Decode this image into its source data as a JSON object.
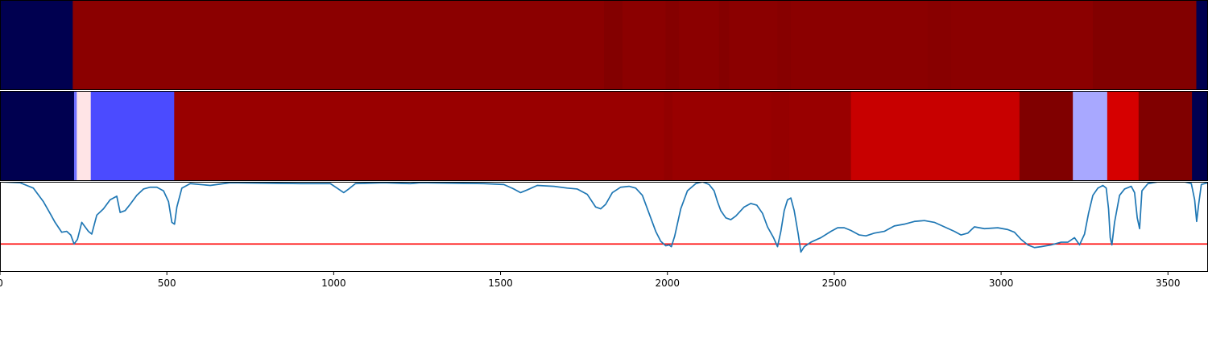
{
  "chart_data": [
    {
      "type": "heatmap",
      "title": "",
      "xlabel": "",
      "ylabel": "",
      "xlim": [
        0,
        3620
      ],
      "segments": [
        {
          "start": 0,
          "end": 218,
          "color": "#000050"
        },
        {
          "start": 218,
          "end": 1810,
          "color": "#8b0000"
        },
        {
          "start": 1810,
          "end": 1865,
          "color": "#830000"
        },
        {
          "start": 1865,
          "end": 1995,
          "color": "#8b0000"
        },
        {
          "start": 1995,
          "end": 2035,
          "color": "#850000"
        },
        {
          "start": 2035,
          "end": 2155,
          "color": "#8b0000"
        },
        {
          "start": 2155,
          "end": 2185,
          "color": "#850000"
        },
        {
          "start": 2185,
          "end": 2330,
          "color": "#8b0000"
        },
        {
          "start": 2330,
          "end": 2370,
          "color": "#870000"
        },
        {
          "start": 2370,
          "end": 2780,
          "color": "#8b0000"
        },
        {
          "start": 2780,
          "end": 2850,
          "color": "#880000"
        },
        {
          "start": 2850,
          "end": 3275,
          "color": "#8b0000"
        },
        {
          "start": 3275,
          "end": 3585,
          "color": "#820000"
        },
        {
          "start": 3585,
          "end": 3620,
          "color": "#000050"
        }
      ]
    },
    {
      "type": "heatmap",
      "title": "",
      "xlabel": "",
      "ylabel": "",
      "xlim": [
        0,
        3620
      ],
      "segments": [
        {
          "start": 0,
          "end": 222,
          "color": "#000050"
        },
        {
          "start": 222,
          "end": 230,
          "color": "#7070ff"
        },
        {
          "start": 230,
          "end": 272,
          "color": "#ffe4e6"
        },
        {
          "start": 272,
          "end": 522,
          "color": "#4b4bff"
        },
        {
          "start": 522,
          "end": 1990,
          "color": "#990000"
        },
        {
          "start": 1990,
          "end": 2015,
          "color": "#930000"
        },
        {
          "start": 2015,
          "end": 2310,
          "color": "#990000"
        },
        {
          "start": 2310,
          "end": 2365,
          "color": "#950000"
        },
        {
          "start": 2365,
          "end": 2550,
          "color": "#990000"
        },
        {
          "start": 2550,
          "end": 3055,
          "color": "#c80000"
        },
        {
          "start": 3055,
          "end": 3215,
          "color": "#800000"
        },
        {
          "start": 3215,
          "end": 3318,
          "color": "#a8a8ff"
        },
        {
          "start": 3318,
          "end": 3412,
          "color": "#d60000"
        },
        {
          "start": 3412,
          "end": 3572,
          "color": "#800000"
        },
        {
          "start": 3572,
          "end": 3620,
          "color": "#000050"
        }
      ]
    },
    {
      "type": "line",
      "title": "",
      "xlabel": "",
      "ylabel": "",
      "xlim": [
        0,
        3620
      ],
      "ylim": [
        0,
        1
      ],
      "xticks": [
        0,
        500,
        1000,
        1500,
        2000,
        2500,
        3000,
        3500
      ],
      "xtick_labels": [
        "0",
        "500",
        "1000",
        "1500",
        "2000",
        "2500",
        "3000",
        "3500"
      ],
      "threshold": {
        "y": 0.31,
        "color": "#ff0000"
      },
      "series": [
        {
          "color": "#1f77b4",
          "points": [
            [
              0,
              1.0
            ],
            [
              60,
              0.99
            ],
            [
              100,
              0.93
            ],
            [
              130,
              0.78
            ],
            [
              150,
              0.65
            ],
            [
              165,
              0.55
            ],
            [
              185,
              0.44
            ],
            [
              200,
              0.45
            ],
            [
              212,
              0.41
            ],
            [
              222,
              0.31
            ],
            [
              232,
              0.36
            ],
            [
              245,
              0.55
            ],
            [
              255,
              0.5
            ],
            [
              265,
              0.45
            ],
            [
              275,
              0.42
            ],
            [
              290,
              0.63
            ],
            [
              310,
              0.7
            ],
            [
              330,
              0.8
            ],
            [
              350,
              0.84
            ],
            [
              360,
              0.66
            ],
            [
              375,
              0.68
            ],
            [
              390,
              0.75
            ],
            [
              410,
              0.85
            ],
            [
              430,
              0.92
            ],
            [
              450,
              0.94
            ],
            [
              470,
              0.94
            ],
            [
              490,
              0.9
            ],
            [
              505,
              0.78
            ],
            [
              515,
              0.55
            ],
            [
              523,
              0.53
            ],
            [
              530,
              0.72
            ],
            [
              545,
              0.93
            ],
            [
              570,
              0.98
            ],
            [
              630,
              0.96
            ],
            [
              690,
              0.99
            ],
            [
              900,
              0.98
            ],
            [
              990,
              0.98
            ],
            [
              1010,
              0.93
            ],
            [
              1030,
              0.88
            ],
            [
              1045,
              0.92
            ],
            [
              1065,
              0.98
            ],
            [
              1150,
              0.99
            ],
            [
              1230,
              0.98
            ],
            [
              1260,
              0.99
            ],
            [
              1450,
              0.98
            ],
            [
              1510,
              0.97
            ],
            [
              1540,
              0.92
            ],
            [
              1560,
              0.88
            ],
            [
              1580,
              0.91
            ],
            [
              1610,
              0.96
            ],
            [
              1660,
              0.95
            ],
            [
              1700,
              0.93
            ],
            [
              1730,
              0.92
            ],
            [
              1760,
              0.86
            ],
            [
              1785,
              0.72
            ],
            [
              1800,
              0.7
            ],
            [
              1815,
              0.75
            ],
            [
              1835,
              0.88
            ],
            [
              1860,
              0.94
            ],
            [
              1885,
              0.95
            ],
            [
              1905,
              0.93
            ],
            [
              1925,
              0.85
            ],
            [
              1945,
              0.65
            ],
            [
              1965,
              0.45
            ],
            [
              1980,
              0.34
            ],
            [
              1995,
              0.29
            ],
            [
              2005,
              0.3
            ],
            [
              2012,
              0.28
            ],
            [
              2022,
              0.4
            ],
            [
              2040,
              0.7
            ],
            [
              2060,
              0.9
            ],
            [
              2085,
              0.98
            ],
            [
              2105,
              1.0
            ],
            [
              2125,
              0.97
            ],
            [
              2140,
              0.9
            ],
            [
              2150,
              0.78
            ],
            [
              2160,
              0.68
            ],
            [
              2175,
              0.6
            ],
            [
              2190,
              0.58
            ],
            [
              2205,
              0.62
            ],
            [
              2230,
              0.72
            ],
            [
              2250,
              0.76
            ],
            [
              2268,
              0.74
            ],
            [
              2285,
              0.65
            ],
            [
              2300,
              0.5
            ],
            [
              2318,
              0.38
            ],
            [
              2330,
              0.28
            ],
            [
              2340,
              0.45
            ],
            [
              2350,
              0.68
            ],
            [
              2360,
              0.8
            ],
            [
              2370,
              0.82
            ],
            [
              2380,
              0.68
            ],
            [
              2392,
              0.42
            ],
            [
              2400,
              0.22
            ],
            [
              2410,
              0.28
            ],
            [
              2430,
              0.33
            ],
            [
              2460,
              0.38
            ],
            [
              2490,
              0.45
            ],
            [
              2510,
              0.49
            ],
            [
              2530,
              0.49
            ],
            [
              2550,
              0.46
            ],
            [
              2575,
              0.41
            ],
            [
              2595,
              0.4
            ],
            [
              2620,
              0.43
            ],
            [
              2650,
              0.45
            ],
            [
              2680,
              0.51
            ],
            [
              2710,
              0.53
            ],
            [
              2740,
              0.56
            ],
            [
              2770,
              0.57
            ],
            [
              2800,
              0.55
            ],
            [
              2830,
              0.5
            ],
            [
              2860,
              0.45
            ],
            [
              2880,
              0.41
            ],
            [
              2900,
              0.43
            ],
            [
              2920,
              0.5
            ],
            [
              2950,
              0.48
            ],
            [
              2990,
              0.49
            ],
            [
              3020,
              0.47
            ],
            [
              3040,
              0.44
            ],
            [
              3060,
              0.36
            ],
            [
              3080,
              0.3
            ],
            [
              3100,
              0.27
            ],
            [
              3120,
              0.28
            ],
            [
              3150,
              0.3
            ],
            [
              3180,
              0.33
            ],
            [
              3200,
              0.33
            ],
            [
              3220,
              0.38
            ],
            [
              3235,
              0.3
            ],
            [
              3250,
              0.42
            ],
            [
              3262,
              0.65
            ],
            [
              3275,
              0.85
            ],
            [
              3290,
              0.93
            ],
            [
              3305,
              0.96
            ],
            [
              3315,
              0.93
            ],
            [
              3322,
              0.7
            ],
            [
              3327,
              0.38
            ],
            [
              3332,
              0.3
            ],
            [
              3340,
              0.55
            ],
            [
              3355,
              0.85
            ],
            [
              3370,
              0.92
            ],
            [
              3390,
              0.95
            ],
            [
              3400,
              0.88
            ],
            [
              3408,
              0.6
            ],
            [
              3415,
              0.48
            ],
            [
              3422,
              0.9
            ],
            [
              3440,
              0.98
            ],
            [
              3470,
              1.0
            ],
            [
              3550,
              1.0
            ],
            [
              3570,
              0.98
            ],
            [
              3580,
              0.8
            ],
            [
              3586,
              0.56
            ],
            [
              3592,
              0.75
            ],
            [
              3600,
              0.97
            ],
            [
              3620,
              0.99
            ]
          ]
        }
      ]
    }
  ]
}
